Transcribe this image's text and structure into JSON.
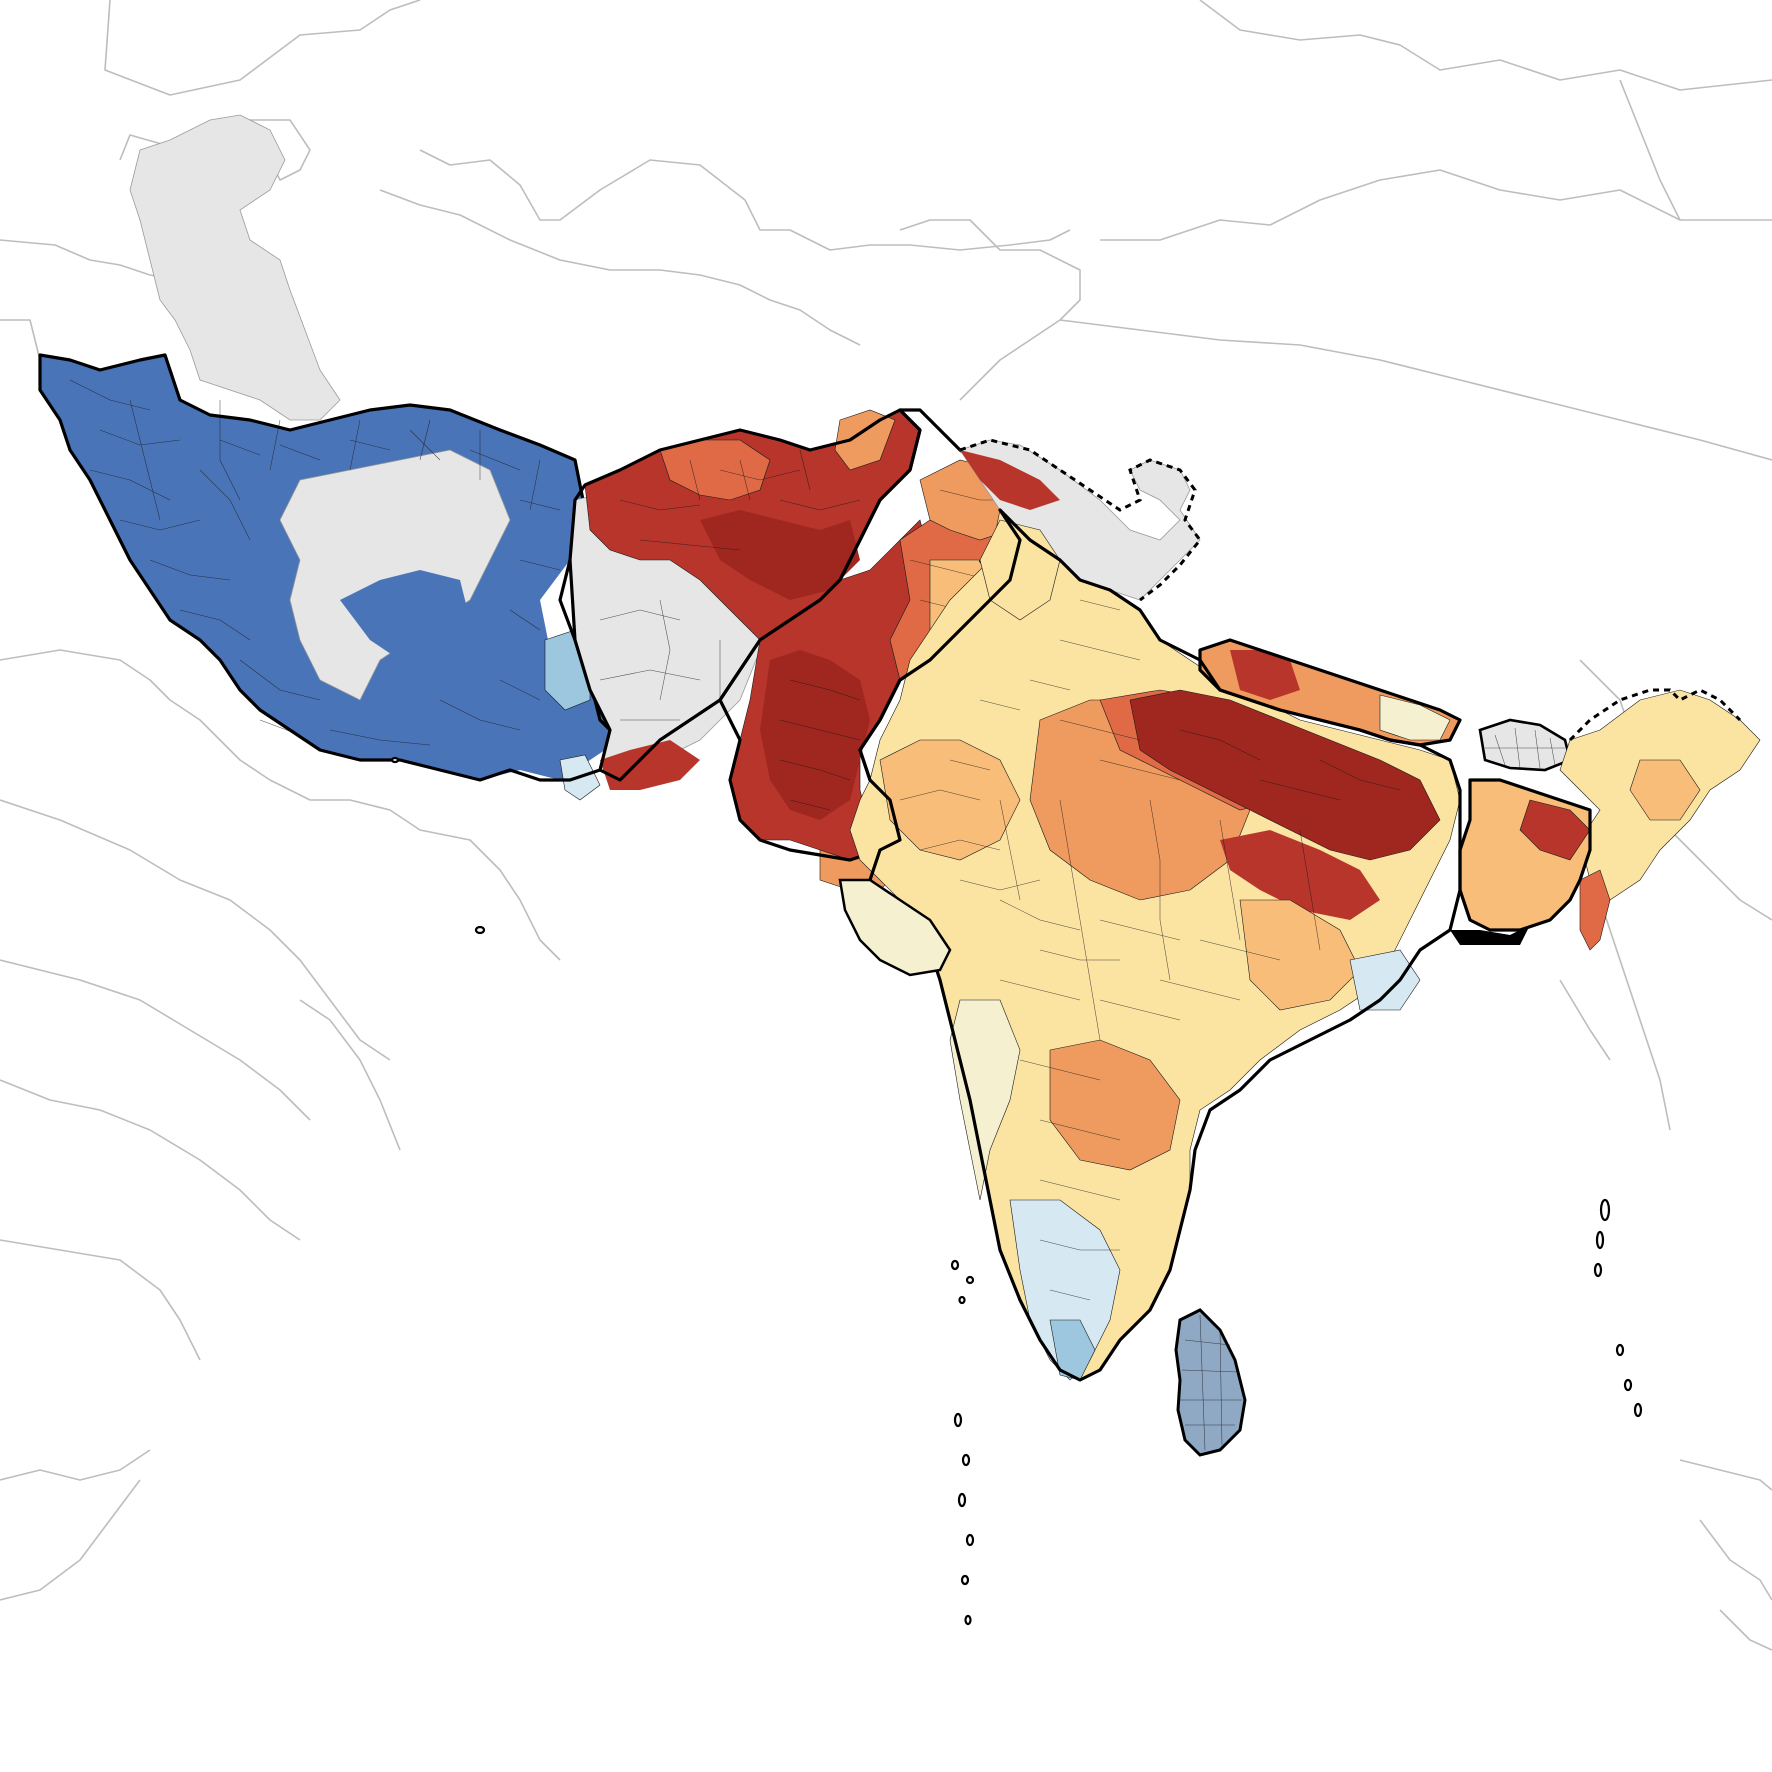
{
  "map": {
    "description_visible_text": [],
    "colors": {
      "background": "#ffffff",
      "context_border": "#bdbdbd",
      "no_data": "#e6e6e6",
      "strong_blue": "#4a74b8",
      "light_blue": "#9cc7de",
      "pale_blue": "#d6e8f2",
      "pale_neutral": "#f4f0d0",
      "pale_yellow": "#fbe3a2",
      "light_orange": "#f8bd79",
      "orange": "#ef9a5e",
      "dark_orange": "#e06a45",
      "red": "#b7352a",
      "dark_red": "#a0271f",
      "outline": "#000000"
    },
    "regions": [
      {
        "id": "iran",
        "fill_key": "strong_blue"
      },
      {
        "id": "afghanistan",
        "fill_key": "mixed_red_and_no_data"
      },
      {
        "id": "pakistan",
        "fill_key": "red"
      },
      {
        "id": "india",
        "fill_key": "mixed_orange_yellow_blue"
      },
      {
        "id": "nepal",
        "fill_key": "orange"
      },
      {
        "id": "bhutan",
        "fill_key": "no_data_outline"
      },
      {
        "id": "bangladesh",
        "fill_key": "orange"
      },
      {
        "id": "sri-lanka",
        "fill_key": "light_blue_outline"
      }
    ]
  }
}
